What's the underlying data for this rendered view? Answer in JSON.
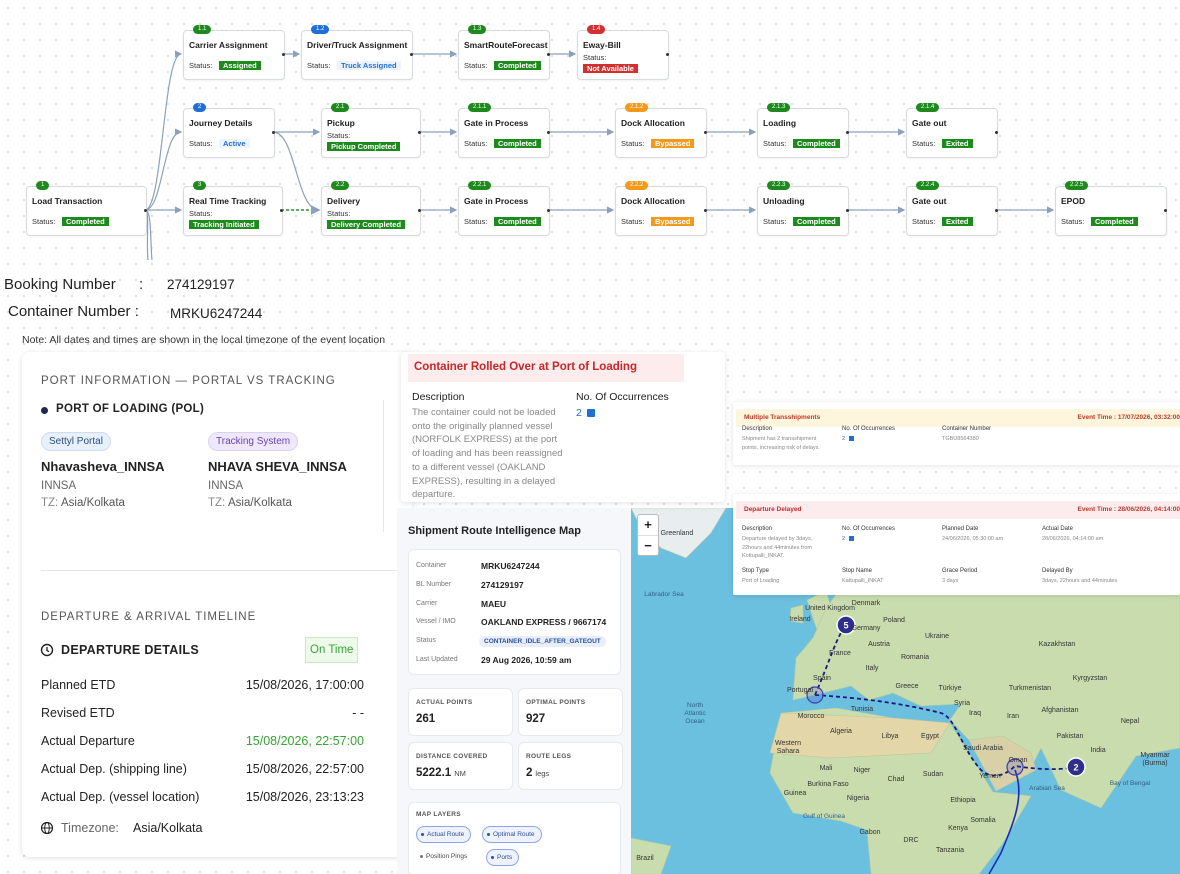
{
  "flow": {
    "status_label": "Status:",
    "nodes": [
      {
        "badge": "1",
        "title": "Load Transaction",
        "status": "Completed",
        "color": "#1e8a1e"
      },
      {
        "badge": "1.1",
        "title": "Carrier Assignment",
        "status": "Assigned",
        "color": "#1e8a1e"
      },
      {
        "badge": "1.2",
        "title": "Driver/Truck Assignment",
        "status": "Truck Assigned",
        "color": "#1f6fd6"
      },
      {
        "badge": "1.3",
        "title": "SmartRouteForecast",
        "status": "Completed",
        "color": "#1e8a1e"
      },
      {
        "badge": "1.4",
        "title": "Eway-Bill",
        "status": "Not Available",
        "color": "#d32f2f"
      },
      {
        "badge": "2",
        "title": "Journey Details",
        "status": "Active",
        "color": "#1f6fd6"
      },
      {
        "badge": "2.1",
        "title": "Pickup",
        "status": "Pickup Completed",
        "color": "#1e8a1e"
      },
      {
        "badge": "2.1.1",
        "title": "Gate in Process",
        "status": "Completed",
        "color": "#1e8a1e"
      },
      {
        "badge": "2.1.2",
        "title": "Dock Allocation",
        "status": "Bypassed",
        "color": "#f39a1b"
      },
      {
        "badge": "2.1.3",
        "title": "Loading",
        "status": "Completed",
        "color": "#1e8a1e"
      },
      {
        "badge": "2.1.4",
        "title": "Gate out",
        "status": "Exited",
        "color": "#1e8a1e"
      },
      {
        "badge": "3",
        "title": "Real Time Tracking",
        "status": "Tracking Initiated",
        "color": "#1e8a1e"
      },
      {
        "badge": "2.2",
        "title": "Delivery",
        "status": "Delivery Completed",
        "color": "#1e8a1e"
      },
      {
        "badge": "2.2.1",
        "title": "Gate in Process",
        "status": "Completed",
        "color": "#1e8a1e"
      },
      {
        "badge": "2.2.2",
        "title": "Dock Allocation",
        "status": "Bypassed",
        "color": "#f39a1b"
      },
      {
        "badge": "2.2.3",
        "title": "Unloading",
        "status": "Completed",
        "color": "#1e8a1e"
      },
      {
        "badge": "2.2.4",
        "title": "Gate out",
        "status": "Exited",
        "color": "#1e8a1e"
      },
      {
        "badge": "2.2.5",
        "title": "EPOD",
        "status": "Completed",
        "color": "#1e8a1e"
      }
    ]
  },
  "booking": {
    "booking_label": "Booking Number",
    "separator": ":",
    "booking_number": "274129197",
    "container_label": "Container Number :",
    "container_number": "MRKU6247244",
    "note": "Note: All dates and times are shown in the local timezone of the event location"
  },
  "port_card": {
    "title": "PORT INFORMATION — PORTAL VS TRACKING",
    "section": "PORT OF LOADING (POL)",
    "columns": [
      {
        "tag": "Settyl Portal",
        "name": "Nhavasheva_INNSA",
        "code": "INNSA",
        "tz_label": "TZ:",
        "tz": "Asia/Kolkata"
      },
      {
        "tag": "Tracking System",
        "name": "NHAVA SHEVA_INNSA",
        "code": "INNSA",
        "tz_label": "TZ:",
        "tz": "Asia/Kolkata"
      }
    ],
    "timeline_title": "DEPARTURE & ARRIVAL TIMELINE",
    "departure_title": "DEPARTURE DETAILS",
    "status": "On Time",
    "rows": [
      {
        "label": "Planned ETD",
        "value": "15/08/2026, 17:00:00"
      },
      {
        "label": "Revised ETD",
        "value": "- -"
      },
      {
        "label": "Actual Departure",
        "value": "15/08/2026, 22:57:00",
        "color": "#3aa335"
      },
      {
        "label": "Actual Dep. (shipping line)",
        "value": "15/08/2026, 22:57:00"
      },
      {
        "label": "Actual Dep. (vessel location)",
        "value": "15/08/2026, 23:13:23"
      }
    ],
    "timezone_label": "Timezone:",
    "timezone": "Asia/Kolkata"
  },
  "alerts": [
    {
      "title": "Container Rolled Over at Port of Loading",
      "fields": [
        {
          "label": "Description",
          "value": "The container could not be loaded onto the originally planned vessel (NORFOLK EXPRESS) at the port of loading and has been reassigned to a different vessel (OAKLAND EXPRESS), resulting in a delayed departure."
        },
        {
          "label": "No. Of Occurrences",
          "value": "2"
        }
      ]
    },
    {
      "title": "Multiple Transshipments",
      "event_time": "Event Time : 17/07/2026, 03:32:00",
      "fields": [
        {
          "label": "Description",
          "value": "Shipment has 2 transshipment points, increasing risk of delays."
        },
        {
          "label": "No. Of Occurrences",
          "value": "2"
        },
        {
          "label": "Container Number",
          "value": "TGBU8564380"
        }
      ]
    },
    {
      "title": "Departure Delayed",
      "event_time": "Event Time : 28/06/2026, 04:14:00",
      "fields": [
        {
          "label": "Description",
          "value": "Departure delayed by 3days, 22hours and 44minutes from Kottupalli_INKAT."
        },
        {
          "label": "No. Of Occurrences",
          "value": "2"
        },
        {
          "label": "Planned Date",
          "value": "24/06/2026, 05:30:00 am"
        },
        {
          "label": "Actual Date",
          "value": "28/06/2026, 04:14:00 am"
        },
        {
          "label": "Stop Type",
          "value": "Port of Loading"
        },
        {
          "label": "Stop Name",
          "value": "Kattupalli_INKAT"
        },
        {
          "label": "Grace Period",
          "value": "3 days"
        },
        {
          "label": "Delayed By",
          "value": "3days, 22hours and 44minutes"
        }
      ]
    }
  ],
  "route_map": {
    "title": "Shipment Route Intelligence Map",
    "info": [
      {
        "label": "Container",
        "value": "MRKU6247244"
      },
      {
        "label": "BL Number",
        "value": "274129197"
      },
      {
        "label": "Carrier",
        "value": "MAEU"
      },
      {
        "label": "Vessel / IMO",
        "value": "OAKLAND EXPRESS / 9667174"
      },
      {
        "label": "Status",
        "value": "CONTAINER_IDLE_AFTER_GATEOUT"
      },
      {
        "label": "Last Updated",
        "value": "29 Aug 2026, 10:59 am"
      }
    ],
    "stats": [
      {
        "label": "ACTUAL POINTS",
        "value": "261"
      },
      {
        "label": "OPTIMAL POINTS",
        "value": "927"
      },
      {
        "label": "DISTANCE COVERED",
        "value": "5222.1",
        "unit": "NM"
      },
      {
        "label": "ROUTE LEGS",
        "value": "2",
        "unit": "legs"
      }
    ],
    "layers_title": "MAP LAYERS",
    "layers": [
      "Actual Route",
      "Optimal Route",
      "Position Pings",
      "Ports"
    ]
  },
  "map": {
    "zoom_in": "+",
    "zoom_out": "−",
    "markers": [
      "5",
      "2"
    ],
    "labels": [
      "Greenland",
      "Labrador Sea",
      "North Atlantic Ocean",
      "Ireland",
      "United Kingdom",
      "Denmark",
      "Poland",
      "Ukraine",
      "Kazakhstan",
      "Germany",
      "France",
      "Austria",
      "Romania",
      "Spain",
      "Portugal",
      "Italy",
      "Greece",
      "Türkiye",
      "Turkmenistan",
      "Kyrgyzstan",
      "Tunisia",
      "Morocco",
      "Syria",
      "Iraq",
      "Iran",
      "Afghanistan",
      "Algeria",
      "Libya",
      "Egypt",
      "Pakistan",
      "Western Sahara",
      "Saudi Arabia",
      "India",
      "Mali",
      "Niger",
      "Chad",
      "Sudan",
      "Yemen",
      "Oman",
      "Myanmar (Burma)",
      "Burkina Faso",
      "Nigeria",
      "Ethiopia",
      "Arabian Sea",
      "Bay of Bengal",
      "Guinea",
      "Gulf of Guinea",
      "Gabon",
      "Somalia",
      "Kenya",
      "DRC",
      "Tanzania",
      "Brazil",
      "Nepal"
    ]
  }
}
